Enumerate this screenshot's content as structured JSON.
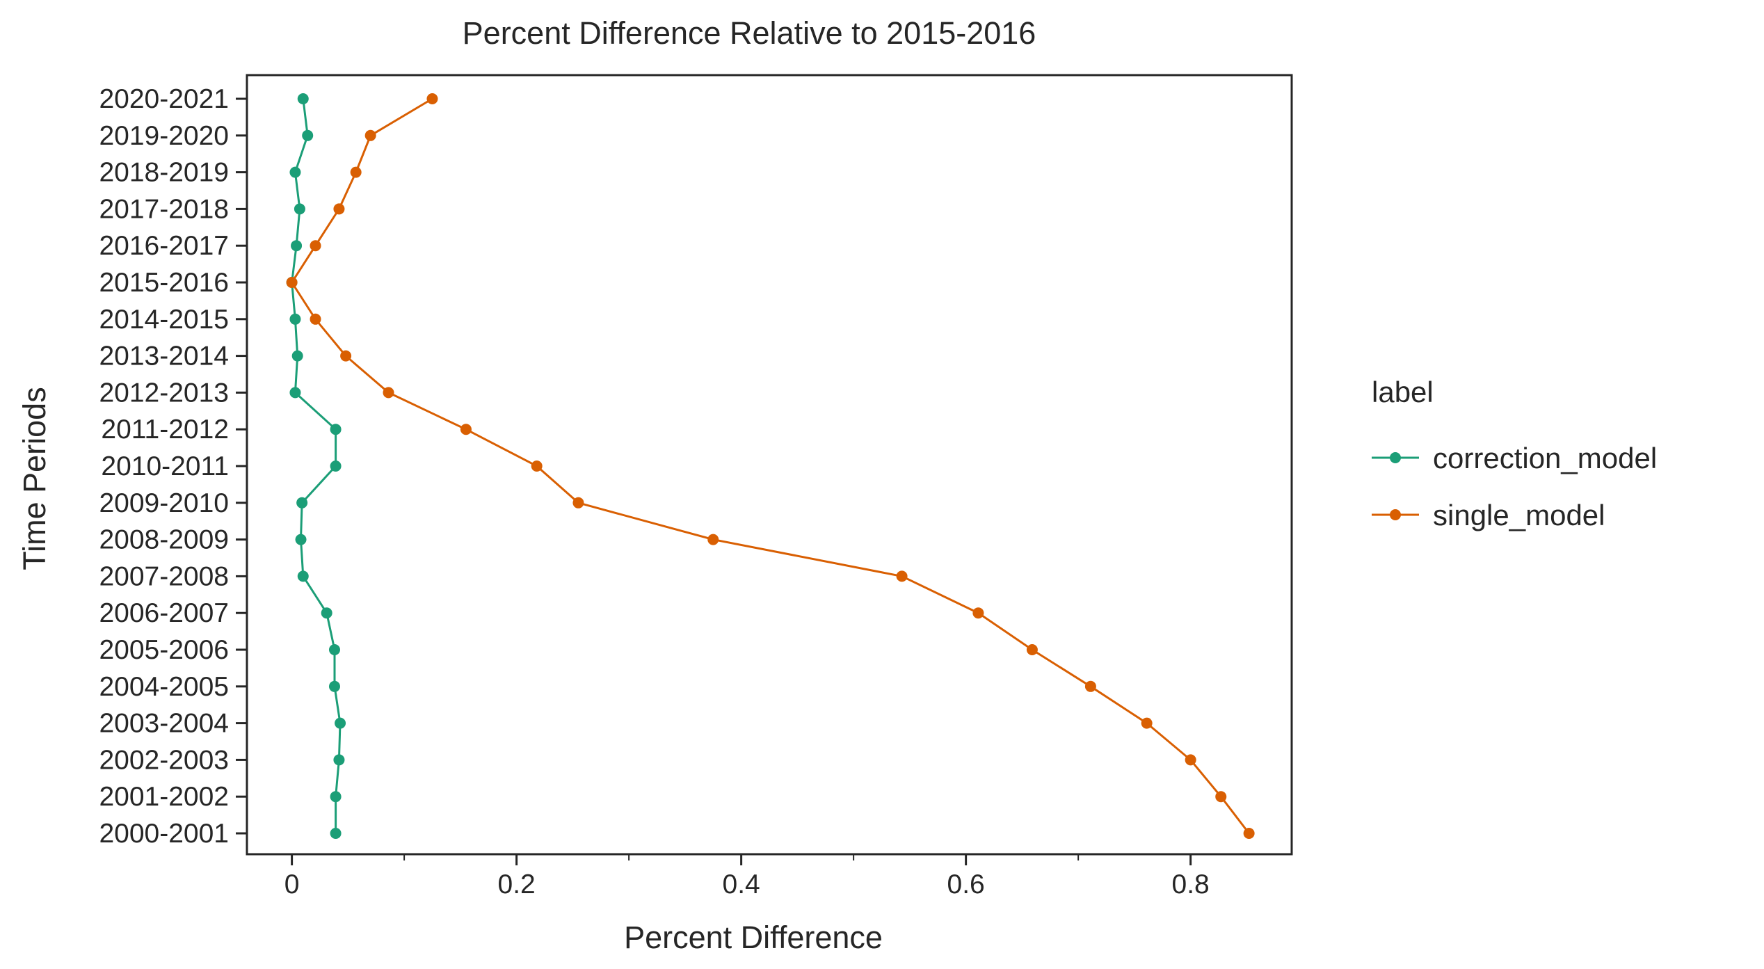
{
  "chart_data": {
    "type": "line",
    "title": "Percent Difference Relative to 2015-2016",
    "xlabel": "Percent Difference",
    "ylabel": "Time Periods",
    "xlim": [
      -0.04,
      0.89
    ],
    "x_ticks": [
      0,
      0.2,
      0.4,
      0.6,
      0.8
    ],
    "x_tick_labels": [
      "0",
      "0.2",
      "0.4",
      "0.6",
      "0.8"
    ],
    "x_minor_ticks": [
      0.1,
      0.3,
      0.5,
      0.7
    ],
    "categories": [
      "2020-2021",
      "2019-2020",
      "2018-2019",
      "2017-2018",
      "2016-2017",
      "2015-2016",
      "2014-2015",
      "2013-2014",
      "2012-2013",
      "2011-2012",
      "2010-2011",
      "2009-2010",
      "2008-2009",
      "2007-2008",
      "2006-2007",
      "2005-2006",
      "2004-2005",
      "2003-2004",
      "2002-2003",
      "2001-2002",
      "2000-2001"
    ],
    "grid": false,
    "legend_title": "label",
    "legend_position": "right",
    "series": [
      {
        "name": "correction_model",
        "color": "#1b9e77",
        "values": [
          0.01,
          0.014,
          0.003,
          0.007,
          0.004,
          0.0,
          0.003,
          0.005,
          0.003,
          0.039,
          0.039,
          0.009,
          0.008,
          0.01,
          0.031,
          0.038,
          0.038,
          0.043,
          0.042,
          0.039,
          0.039
        ]
      },
      {
        "name": "single_model",
        "color": "#d95f02",
        "values": [
          0.125,
          0.07,
          0.057,
          0.042,
          0.021,
          0.0,
          0.021,
          0.048,
          0.086,
          0.155,
          0.218,
          0.255,
          0.375,
          0.543,
          0.611,
          0.659,
          0.711,
          0.761,
          0.8,
          0.827,
          0.852
        ]
      }
    ]
  }
}
